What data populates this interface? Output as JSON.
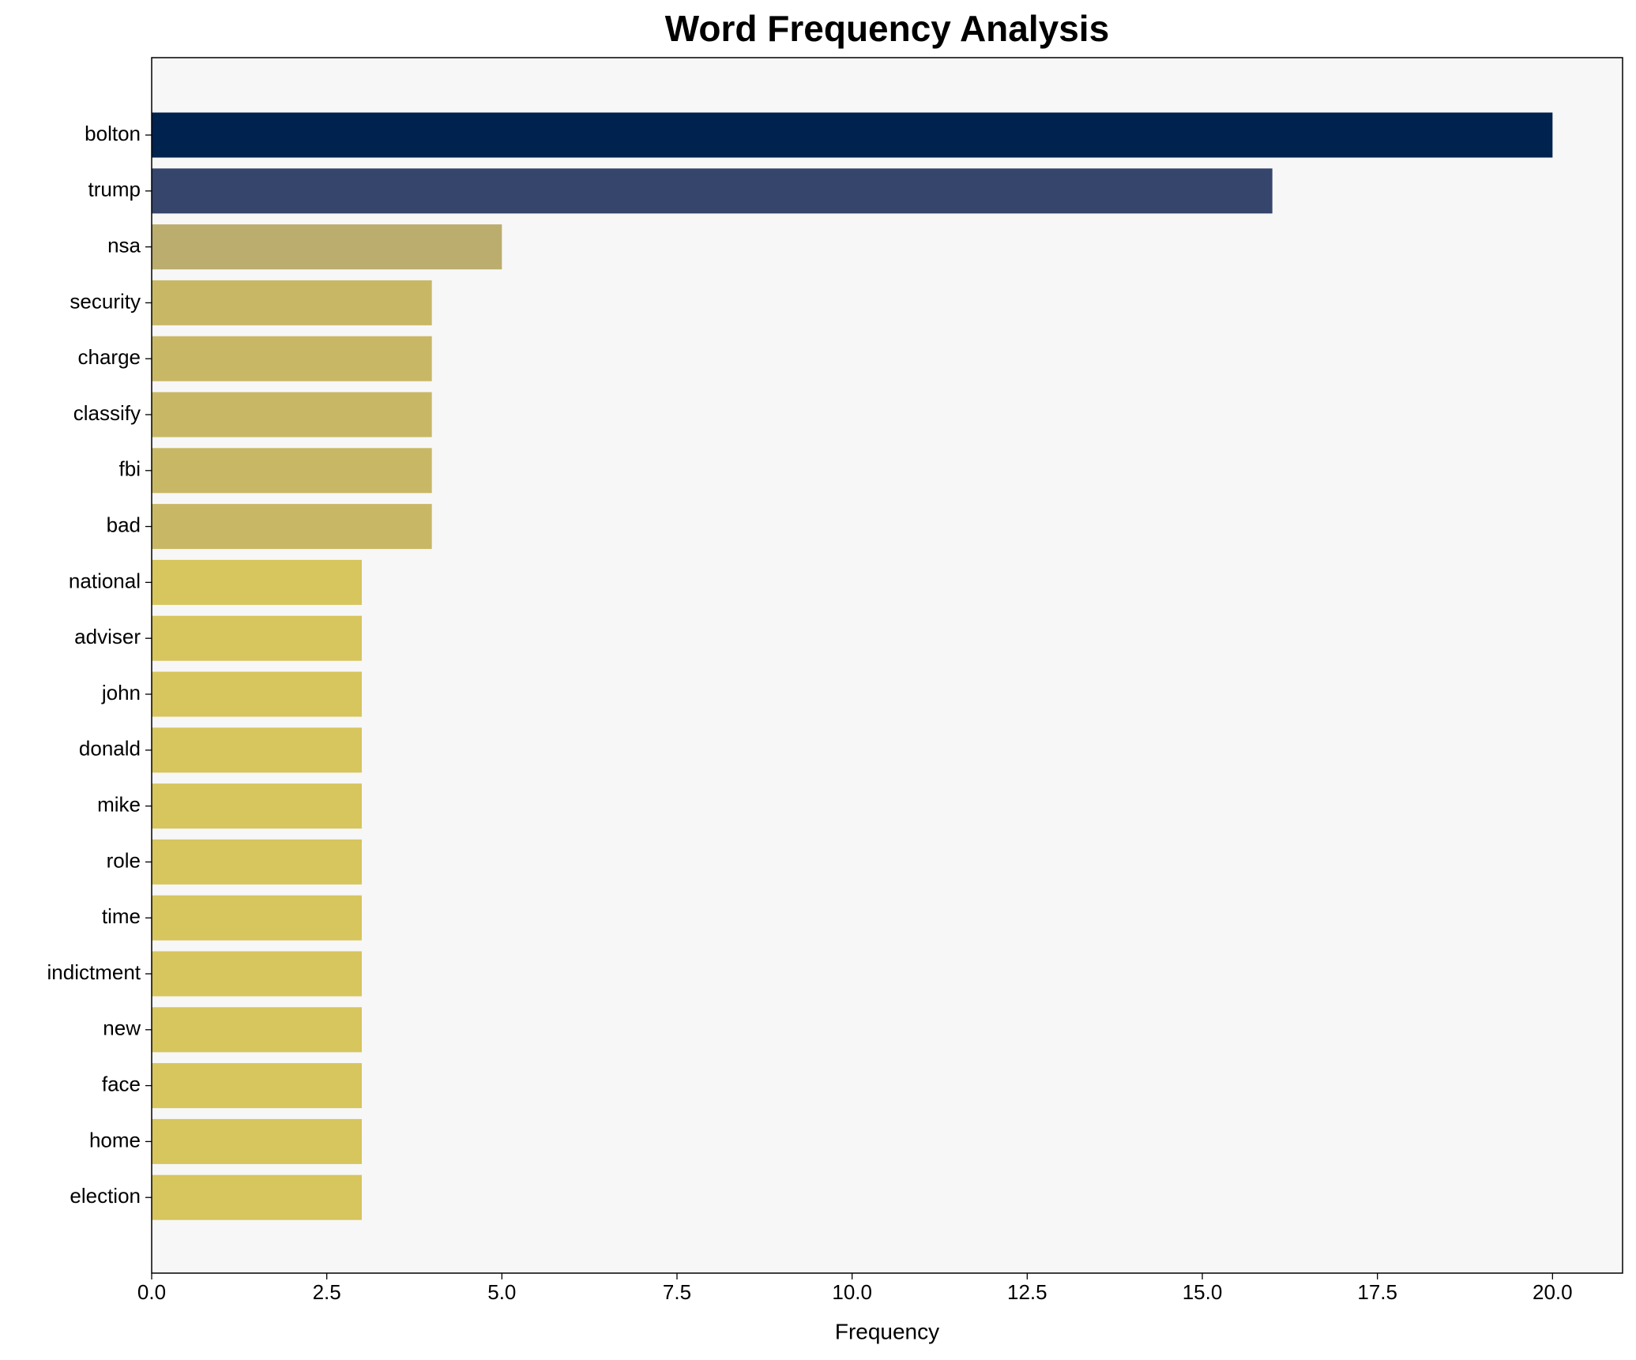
{
  "chart_data": {
    "type": "barh",
    "title": "Word Frequency Analysis",
    "x_label": "Frequency",
    "categories": [
      "bolton",
      "trump",
      "nsa",
      "security",
      "charge",
      "classify",
      "fbi",
      "bad",
      "national",
      "adviser",
      "john",
      "donald",
      "mike",
      "role",
      "time",
      "indictment",
      "new",
      "face",
      "home",
      "election"
    ],
    "values": [
      20,
      16,
      5,
      4,
      4,
      4,
      4,
      4,
      3,
      3,
      3,
      3,
      3,
      3,
      3,
      3,
      3,
      3,
      3,
      3
    ],
    "colors": [
      "#00224e",
      "#35456c",
      "#bbad6e",
      "#c8b866",
      "#c8b866",
      "#c8b866",
      "#c8b866",
      "#c8b866",
      "#d7c55e",
      "#d7c55e",
      "#d7c55e",
      "#d7c55e",
      "#d7c55e",
      "#d7c55e",
      "#d7c55e",
      "#d7c55e",
      "#d7c55e",
      "#d7c55e",
      "#d7c55e",
      "#d7c55e"
    ],
    "xlim": [
      0,
      21
    ],
    "xticks": [
      {
        "value": 0,
        "label": "0.0"
      },
      {
        "value": 2.5,
        "label": "2.5"
      },
      {
        "value": 5,
        "label": "5.0"
      },
      {
        "value": 7.5,
        "label": "7.5"
      },
      {
        "value": 10,
        "label": "10.0"
      },
      {
        "value": 12.5,
        "label": "12.5"
      },
      {
        "value": 15,
        "label": "15.0"
      },
      {
        "value": 17.5,
        "label": "17.5"
      },
      {
        "value": 20,
        "label": "20.0"
      }
    ],
    "background": "#f7f7f7"
  }
}
